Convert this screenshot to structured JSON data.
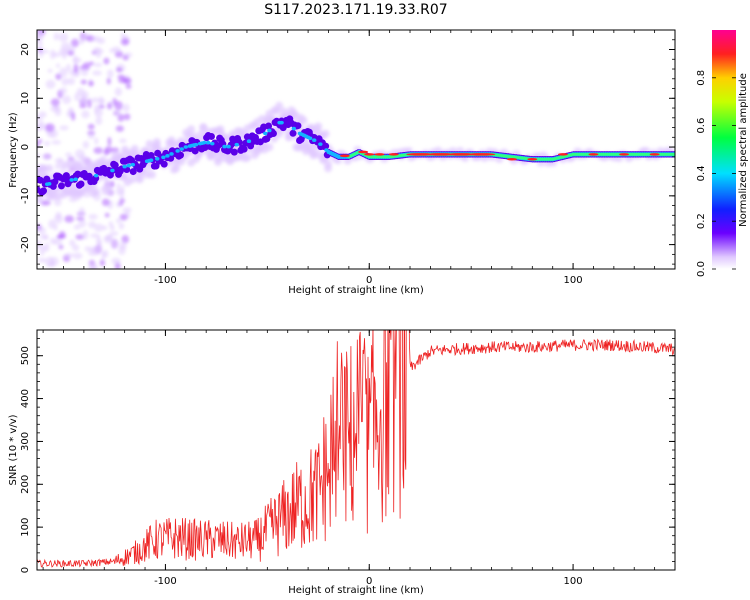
{
  "title": "S117.2023.171.19.33.R07",
  "colors": {
    "snr_line": "#ee2222",
    "frame": "#000000"
  },
  "chart_data": [
    {
      "type": "heatmap",
      "xlabel": "Height of straight line (km)",
      "ylabel": "Frequency (Hz)",
      "xlim": [
        -163,
        150
      ],
      "ylim": [
        -25,
        24
      ],
      "xticks": [
        -100,
        0,
        100
      ],
      "yticks": [
        -20,
        -10,
        0,
        10,
        20
      ],
      "colorbar": {
        "label": "Normalized spectral amplitude",
        "range": [
          0,
          1
        ],
        "ticks": [
          0.0,
          0.2,
          0.4,
          0.6,
          0.8
        ],
        "colormap": "rainbow (violet to red/pink)"
      },
      "ridge": {
        "description": "dominant frequency ridge vs height",
        "x": [
          -163,
          -150,
          -135,
          -120,
          -110,
          -100,
          -90,
          -80,
          -70,
          -60,
          -50,
          -45,
          -40,
          -35,
          -30,
          -25,
          -20,
          -15,
          -10,
          -5,
          0,
          10,
          20,
          40,
          60,
          80,
          90,
          100,
          120,
          150
        ],
        "y": [
          -8,
          -7,
          -6,
          -4,
          -3,
          -2,
          0,
          1,
          0,
          1,
          3,
          5,
          5,
          3,
          2,
          1,
          -1,
          -2,
          -2,
          -1,
          -2,
          -2,
          -1.5,
          -1.5,
          -1.5,
          -2.5,
          -2.5,
          -1.5,
          -1.5,
          -1.5
        ]
      }
    },
    {
      "type": "line",
      "xlabel": "Height of straight line (km)",
      "ylabel": "SNR (10 * v/v)",
      "xlim": [
        -163,
        150
      ],
      "ylim": [
        0,
        560
      ],
      "xticks": [
        -100,
        0,
        100
      ],
      "yticks": [
        0,
        100,
        200,
        300,
        400,
        500
      ],
      "series": [
        {
          "x": [
            -163,
            -140,
            -125,
            -115,
            -105,
            -95,
            -85,
            -75,
            -65,
            -55,
            -45,
            -35,
            -25,
            -20,
            -15,
            -10,
            -5,
            0,
            5,
            10,
            15,
            20,
            25,
            30,
            40,
            60,
            80,
            100,
            120,
            150
          ],
          "y": [
            15,
            15,
            20,
            40,
            70,
            75,
            70,
            70,
            65,
            70,
            110,
            150,
            180,
            250,
            320,
            300,
            350,
            300,
            380,
            430,
            460,
            470,
            490,
            510,
            515,
            520,
            520,
            525,
            525,
            515
          ]
        }
      ]
    }
  ]
}
